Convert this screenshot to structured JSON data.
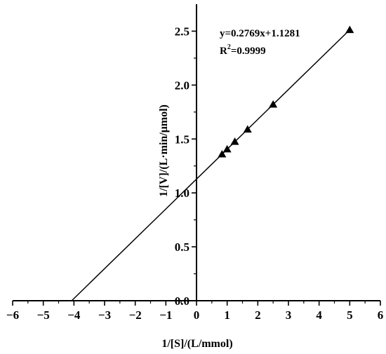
{
  "chart_data": {
    "type": "scatter",
    "title": "",
    "xlabel": "1/[S]/(L/mmol)",
    "ylabel": "1/[V]/(L·min/μmol)",
    "xlim": [
      -6,
      6
    ],
    "ylim": [
      0,
      2.75
    ],
    "x_ticks": [
      -6,
      -5,
      -4,
      -3,
      -2,
      -1,
      0,
      1,
      2,
      3,
      4,
      5,
      6
    ],
    "y_ticks": [
      0.0,
      0.5,
      1.0,
      1.5,
      2.0,
      2.5
    ],
    "x_tick_labels": [
      "−6",
      "−5",
      "−4",
      "−3",
      "−2",
      "−1",
      "0",
      "1",
      "2",
      "3",
      "4",
      "5",
      "6"
    ],
    "y_tick_labels": [
      "0.0",
      "0.5",
      "1.0",
      "1.5",
      "2.0",
      "2.5"
    ],
    "grid": false,
    "marker": "triangle",
    "series": [
      {
        "x": [
          0.833,
          1.0,
          1.25,
          1.667,
          2.5,
          5.0
        ],
        "y": [
          1.359,
          1.405,
          1.475,
          1.589,
          1.82,
          2.512
        ]
      }
    ],
    "fit_line": {
      "slope": 0.2769,
      "intercept": 1.1281,
      "x_range": [
        -4.074,
        5.0
      ]
    },
    "annotation": {
      "equation": "y=0.2769x+1.1281",
      "r2_prefix": "R",
      "r2_sup": "2",
      "r2_value": "=0.9999"
    }
  }
}
